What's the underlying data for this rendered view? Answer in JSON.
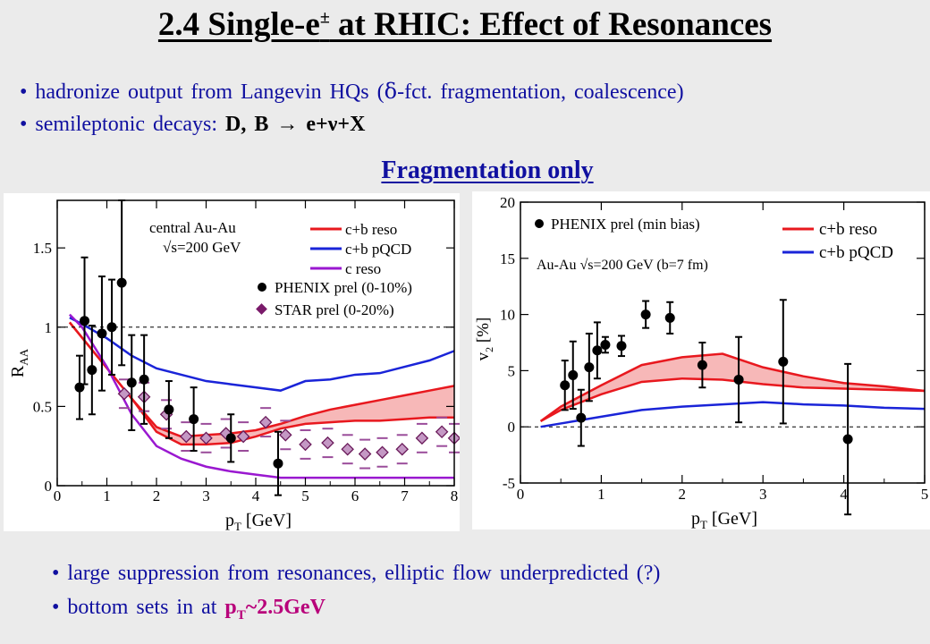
{
  "title": {
    "main": "2.4 Single-e",
    "sup": "±",
    "rest": " at RHIC: Effect of Resonances"
  },
  "bullets_top": {
    "b1_a": "• hadronize output from Langevin HQs (",
    "b1_delta": "δ",
    "b1_b": "-fct. fragmentation, coalescence)",
    "b2_a": "• semileptonic decays:  ",
    "b2_b": "D, B → e+ν+X"
  },
  "subtitle": "Fragmentation only",
  "bullets_bottom": {
    "b1": "• large suppression from resonances, elliptic flow underpredicted (?)",
    "b2_a": "• bottom sets in at ",
    "b2_pt": "p",
    "b2_sub": "T",
    "b2_b": "~2.5GeV"
  },
  "colors": {
    "red": "#e8181e",
    "blue": "#1a24d8",
    "purple": "#9a18d0",
    "star": "#9a4c9a",
    "band": "#f7b8b8",
    "heading_blue": "#1010a0",
    "highlight": "#b8007a"
  },
  "chart_data": [
    {
      "type": "line",
      "ylabel": "R",
      "ylabel_sub": "AA",
      "xlabel": "p",
      "xlabel_sub": "T",
      "xlabel_unit": " [GeV]",
      "xlim": [
        0,
        8
      ],
      "ylim": [
        0,
        1.8
      ],
      "xticks": [
        "0",
        "1",
        "2",
        "3",
        "4",
        "5",
        "6",
        "7",
        "8"
      ],
      "yticks": [
        [
          "0",
          0
        ],
        [
          "0.5",
          0.5
        ],
        [
          "1",
          1
        ],
        [
          "1.5",
          1.5
        ]
      ],
      "ref_line": 1,
      "annotation_1": "central Au-Au",
      "annotation_2": "√s=200 GeV",
      "legend_labels": [
        "c+b reso",
        "c+b pQCD",
        "c reso",
        "PHENIX prel (0-10%)",
        "STAR prel (0-20%)"
      ],
      "band": {
        "name": "c+b reso",
        "x": [
          0.25,
          1.5,
          2,
          2.5,
          3,
          3.5,
          4,
          4.5,
          5,
          5.5,
          6,
          6.5,
          7,
          7.5,
          8
        ],
        "low": [
          1.03,
          0.55,
          0.34,
          0.26,
          0.26,
          0.27,
          0.31,
          0.36,
          0.39,
          0.4,
          0.41,
          0.41,
          0.42,
          0.43,
          0.43
        ],
        "high": [
          1.03,
          0.55,
          0.37,
          0.31,
          0.32,
          0.33,
          0.35,
          0.39,
          0.44,
          0.48,
          0.51,
          0.54,
          0.57,
          0.6,
          0.63
        ]
      },
      "series": [
        {
          "name": "c+b pQCD",
          "x": [
            0.25,
            0.5,
            1,
            1.5,
            2,
            2.5,
            3,
            3.5,
            4,
            4.5,
            5,
            5.5,
            6,
            6.5,
            7,
            7.5,
            8
          ],
          "y": [
            1.06,
            1.02,
            0.93,
            0.82,
            0.74,
            0.7,
            0.66,
            0.64,
            0.62,
            0.6,
            0.66,
            0.67,
            0.7,
            0.71,
            0.75,
            0.79,
            0.85
          ]
        },
        {
          "name": "c reso",
          "x": [
            0.25,
            0.5,
            1,
            1.5,
            2,
            2.5,
            3,
            3.5,
            4,
            4.5,
            5,
            5.5,
            6,
            6.5,
            7,
            7.5,
            8
          ],
          "y": [
            1.08,
            1.0,
            0.75,
            0.45,
            0.25,
            0.17,
            0.12,
            0.09,
            0.07,
            0.05,
            0.05,
            0.05,
            0.05,
            0.05,
            0.05,
            0.05,
            0.05
          ]
        }
      ],
      "phenix": [
        {
          "x": 0.45,
          "y": 0.62,
          "e": 0.2
        },
        {
          "x": 0.55,
          "y": 1.04,
          "e": 0.4
        },
        {
          "x": 0.7,
          "y": 0.73,
          "e": 0.28
        },
        {
          "x": 0.9,
          "y": 0.96,
          "e": 0.36
        },
        {
          "x": 1.1,
          "y": 1.0,
          "e": 0.3
        },
        {
          "x": 1.3,
          "y": 1.28,
          "e": 0.52
        },
        {
          "x": 1.5,
          "y": 0.65,
          "e": 0.3
        },
        {
          "x": 1.75,
          "y": 0.67,
          "e": 0.28
        },
        {
          "x": 2.25,
          "y": 0.48,
          "e": 0.18
        },
        {
          "x": 2.75,
          "y": 0.42,
          "e": 0.2
        },
        {
          "x": 3.5,
          "y": 0.3,
          "e": 0.15
        },
        {
          "x": 4.45,
          "y": 0.14,
          "e": 0.2
        }
      ],
      "star": [
        {
          "x": 1.35,
          "y": 0.58
        },
        {
          "x": 1.75,
          "y": 0.56
        },
        {
          "x": 2.2,
          "y": 0.45
        },
        {
          "x": 2.6,
          "y": 0.31
        },
        {
          "x": 3.0,
          "y": 0.3
        },
        {
          "x": 3.4,
          "y": 0.33
        },
        {
          "x": 3.75,
          "y": 0.31
        },
        {
          "x": 4.2,
          "y": 0.4
        },
        {
          "x": 4.6,
          "y": 0.32
        },
        {
          "x": 5.0,
          "y": 0.26
        },
        {
          "x": 5.45,
          "y": 0.27
        },
        {
          "x": 5.85,
          "y": 0.23
        },
        {
          "x": 6.2,
          "y": 0.2
        },
        {
          "x": 6.55,
          "y": 0.21
        },
        {
          "x": 6.95,
          "y": 0.23
        },
        {
          "x": 7.35,
          "y": 0.3
        },
        {
          "x": 7.75,
          "y": 0.34
        },
        {
          "x": 8.0,
          "y": 0.3
        }
      ]
    },
    {
      "type": "line",
      "ylabel": "v",
      "ylabel_sub": "2",
      "ylabel_unit": " [%]",
      "xlabel": "p",
      "xlabel_sub": "T",
      "xlabel_unit": " [GeV]",
      "xlim": [
        0,
        5
      ],
      "ylim": [
        -5,
        20
      ],
      "xticks": [
        "0",
        "1",
        "2",
        "3",
        "4",
        "5"
      ],
      "yticks": [
        [
          "-5",
          -5
        ],
        [
          "0",
          0
        ],
        [
          "5",
          5
        ],
        [
          "10",
          10
        ],
        [
          "15",
          15
        ],
        [
          "20",
          20
        ]
      ],
      "ref_line": 0,
      "legend_labels": [
        "PHENIX prel (min bias)",
        "c+b reso",
        "c+b pQCD"
      ],
      "annotation_1": "Au-Au √s=200 GeV (b=7 fm)",
      "band": {
        "name": "c+b reso",
        "x": [
          0.25,
          0.5,
          1,
          1.5,
          2,
          2.5,
          3,
          3.5,
          4,
          4.5,
          5
        ],
        "low": [
          0.5,
          1.5,
          2.9,
          4.0,
          4.3,
          4.2,
          3.8,
          3.5,
          3.4,
          3.3,
          3.2
        ],
        "high": [
          0.5,
          1.8,
          3.7,
          5.5,
          6.2,
          6.5,
          5.3,
          4.5,
          3.9,
          3.6,
          3.2
        ]
      },
      "series": [
        {
          "name": "c+b pQCD",
          "x": [
            0.25,
            0.5,
            1,
            1.5,
            2,
            2.5,
            3,
            3.5,
            4,
            4.5,
            5
          ],
          "y": [
            0.0,
            0.3,
            0.9,
            1.5,
            1.8,
            2.0,
            2.2,
            2.0,
            1.9,
            1.7,
            1.6
          ]
        }
      ],
      "phenix": [
        {
          "x": 0.55,
          "y": 3.7,
          "e": 2.2
        },
        {
          "x": 0.65,
          "y": 4.6,
          "e": 3.0
        },
        {
          "x": 0.75,
          "y": 0.8,
          "e": 2.5
        },
        {
          "x": 0.85,
          "y": 5.3,
          "e": 3.0
        },
        {
          "x": 0.95,
          "y": 6.8,
          "e": 2.5
        },
        {
          "x": 1.05,
          "y": 7.3,
          "e": 0.7
        },
        {
          "x": 1.25,
          "y": 7.2,
          "e": 0.9
        },
        {
          "x": 1.55,
          "y": 10.0,
          "e": 1.2
        },
        {
          "x": 1.85,
          "y": 9.7,
          "e": 1.4
        },
        {
          "x": 2.25,
          "y": 5.5,
          "e": 2.0
        },
        {
          "x": 2.7,
          "y": 4.2,
          "e": 3.8
        },
        {
          "x": 3.25,
          "y": 5.8,
          "e": 5.5
        },
        {
          "x": 4.05,
          "y": -1.1,
          "e": 6.7
        }
      ]
    }
  ]
}
